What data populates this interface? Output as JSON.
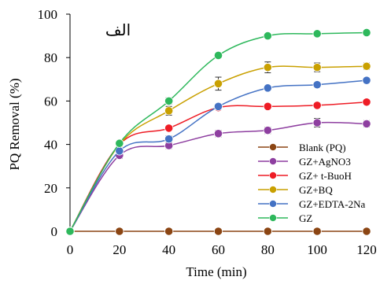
{
  "chart_data": {
    "type": "line",
    "panel_label": "الف",
    "xlabel": "Time (min)",
    "ylabel": "PQ Removal  (%)",
    "x": [
      0,
      20,
      40,
      60,
      80,
      100,
      120
    ],
    "x_ticks": [
      "0",
      "20",
      "40",
      "60",
      "80",
      "100",
      "120"
    ],
    "y_ticks": [
      "0",
      "20",
      "40",
      "60",
      "80",
      "100"
    ],
    "xlim": [
      0,
      120
    ],
    "ylim": [
      0,
      100
    ],
    "grid": false,
    "legend_position": "bottom-right",
    "series": [
      {
        "name": "Blank (PQ)",
        "color": "#8b4513",
        "values": [
          0,
          0,
          0,
          0,
          0,
          0,
          0
        ],
        "errors": [
          0,
          0,
          0,
          0,
          0,
          0,
          0
        ]
      },
      {
        "name": "GZ+AgNO3",
        "color": "#8e3fa0",
        "values": [
          0,
          35,
          39.5,
          45,
          46.5,
          50,
          49.5
        ],
        "errors": [
          0,
          1.5,
          1.5,
          1.5,
          1.5,
          2,
          1.5
        ]
      },
      {
        "name": "GZ+ t-BuoH",
        "color": "#ee1c25",
        "values": [
          0,
          40,
          47.5,
          57,
          57.5,
          58,
          59.5
        ],
        "errors": [
          0,
          1,
          1,
          1,
          1,
          1,
          1
        ]
      },
      {
        "name": "GZ+BQ",
        "color": "#c9a000",
        "values": [
          0,
          40,
          55.5,
          68,
          75.5,
          75.5,
          76
        ],
        "errors": [
          0,
          1,
          2,
          3,
          2.5,
          2,
          1.5
        ]
      },
      {
        "name": "GZ+EDTA-2Na",
        "color": "#4472c4",
        "values": [
          0,
          37,
          42.5,
          57.5,
          66,
          67.5,
          69.5
        ],
        "errors": [
          0,
          1,
          1.5,
          1,
          1,
          1,
          1
        ]
      },
      {
        "name": "GZ",
        "color": "#2eb85c",
        "values": [
          0,
          40.5,
          60,
          81,
          90,
          91,
          91.5
        ],
        "errors": [
          0,
          1,
          1.5,
          1,
          1,
          1,
          0.5
        ]
      }
    ]
  }
}
